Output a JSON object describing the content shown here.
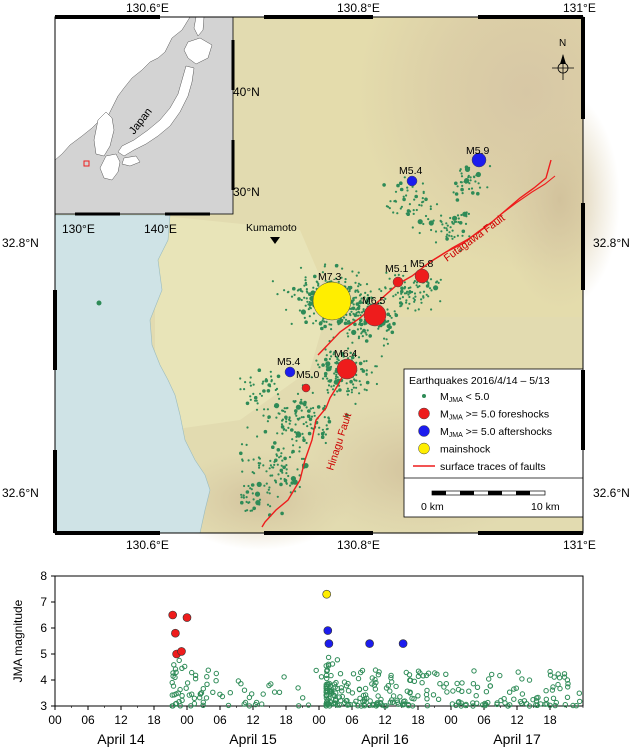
{
  "map": {
    "top_lon_labels": [
      "130.6°E",
      "130.8°E",
      "131°E"
    ],
    "bottom_lon_labels": [
      "130.6°E",
      "130.8°E",
      "131°E"
    ],
    "left_lat_labels": [
      "32.8°N",
      "32.6°N"
    ],
    "right_lat_labels": [
      "32.8°N",
      "32.6°N"
    ],
    "north_label": "N",
    "city_label": "Kumamoto",
    "fault_labels": {
      "futagawa": "Futagawa Fault",
      "hinagu": "Hinagu Fault"
    },
    "quake_labels": [
      "M7.3",
      "M6.5",
      "M6.4",
      "M5.9",
      "M5.8",
      "M5.4",
      "M5.4",
      "M5.1",
      "M5.0"
    ],
    "inset": {
      "country_label": "Japan",
      "lat_labels": [
        "40°N",
        "30°N"
      ],
      "lon_labels": [
        "130°E",
        "140°E"
      ]
    },
    "legend": {
      "title": "Earthquakes 2016/4/14 – 5/13",
      "items": [
        {
          "pre": "M",
          "sub": "JMA",
          "post": " < 5.0",
          "color": "#2e8b57",
          "kind": "small"
        },
        {
          "pre": "M",
          "sub": "JMA",
          "post": " >= 5.0 foreshocks",
          "color": "#ee1c1c",
          "kind": "big"
        },
        {
          "pre": "M",
          "sub": "JMA",
          "post": " >= 5.0 aftershocks",
          "color": "#1c1cee",
          "kind": "big"
        },
        {
          "pre": "",
          "sub": "",
          "post": "mainshock",
          "color": "#ffee00",
          "kind": "big"
        },
        {
          "pre": "",
          "sub": "",
          "post": "surface traces of faults",
          "color": "#ee1c1c",
          "kind": "line"
        }
      ],
      "scale_labels": [
        "0 km",
        "10 km"
      ]
    }
  },
  "chart_data": {
    "type": "scatter",
    "xlabel": "",
    "ylabel": "JMA magnitude",
    "ylim": [
      3,
      8
    ],
    "yticks": [
      3,
      4,
      5,
      6,
      7,
      8
    ],
    "xlim_hours": [
      0,
      96
    ],
    "xtick_labels": [
      "00",
      "06",
      "12",
      "18",
      "00",
      "06",
      "12",
      "18",
      "00",
      "06",
      "12",
      "18",
      "00",
      "06",
      "12",
      "18"
    ],
    "day_labels": [
      "April 14",
      "April 15",
      "April 16",
      "April 17"
    ],
    "series": [
      {
        "name": "foreshocks",
        "color": "#ee1c1c",
        "points": [
          [
            21.4,
            6.5
          ],
          [
            21.9,
            5.8
          ],
          [
            22.1,
            5.0
          ],
          [
            23.0,
            5.1
          ],
          [
            24.0,
            6.4
          ]
        ]
      },
      {
        "name": "mainshock",
        "color": "#ffee00",
        "points": [
          [
            49.4,
            7.3
          ]
        ]
      },
      {
        "name": "aftershocks",
        "color": "#1c1cee",
        "points": [
          [
            49.6,
            5.9
          ],
          [
            49.8,
            5.4
          ],
          [
            57.2,
            5.4
          ],
          [
            63.3,
            5.4
          ]
        ]
      }
    ]
  }
}
